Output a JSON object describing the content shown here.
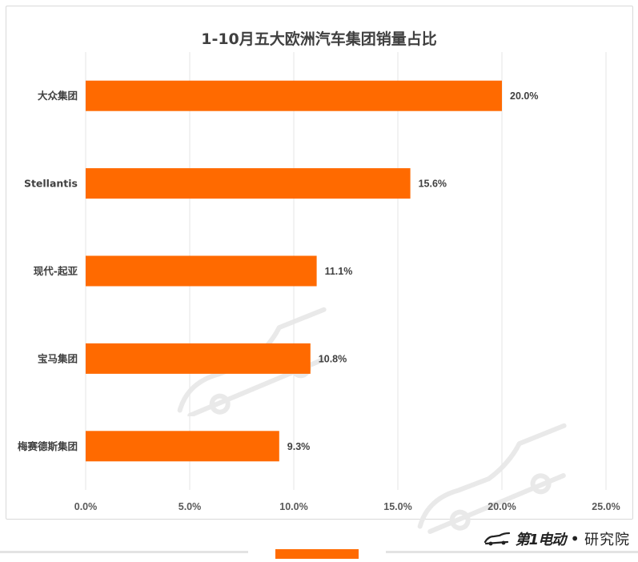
{
  "chart_data": {
    "type": "bar",
    "orientation": "horizontal",
    "title": "1-10月五大欧洲汽车集团销量占比",
    "categories": [
      "大众集团",
      "Stellantis",
      "现代-起亚",
      "宝马集团",
      "梅赛德斯集团"
    ],
    "values": [
      20.0,
      15.6,
      11.1,
      10.8,
      9.3
    ],
    "value_labels": [
      "20.0%",
      "15.6%",
      "11.1%",
      "10.8%",
      "9.3%"
    ],
    "xlim": [
      0,
      25
    ],
    "xticks": [
      0,
      5,
      10,
      15,
      20,
      25
    ],
    "xtick_labels": [
      "0.0%",
      "5.0%",
      "10.0%",
      "15.0%",
      "20.0%",
      "25.0%"
    ],
    "grid": "vertical",
    "bar_color": "#ff6a00",
    "grid_color": "#e6e6e6"
  },
  "brand": {
    "logo": "第1电动",
    "separator": "•",
    "subtitle": "研究院"
  },
  "colors": {
    "accent": "#ff6a00",
    "text": "#404040"
  }
}
